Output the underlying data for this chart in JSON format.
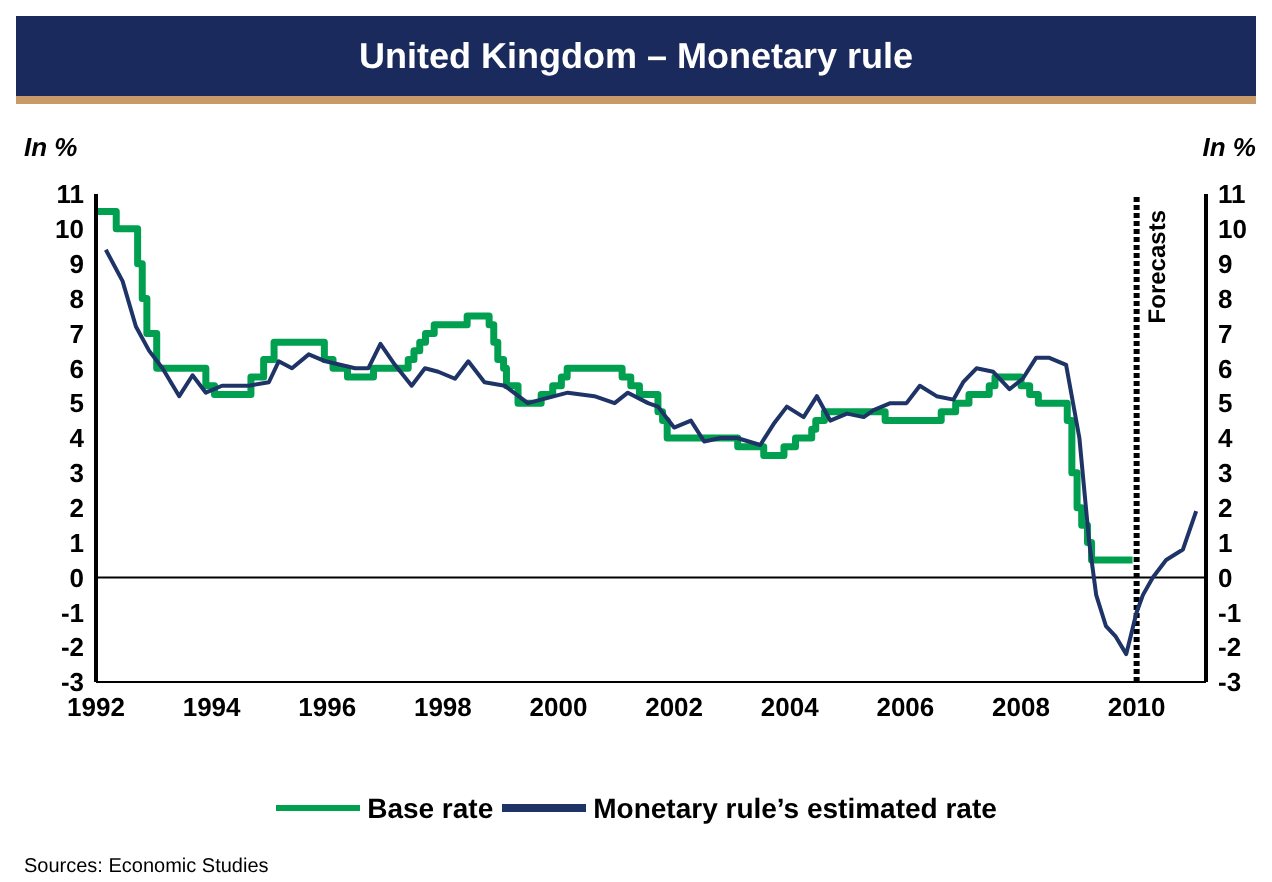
{
  "chart_data": {
    "type": "line",
    "title": "United Kingdom – Monetary rule",
    "ylabel": "In %",
    "y2label": "In %",
    "xlim": [
      1992,
      2011.2
    ],
    "xticks": [
      1992,
      1994,
      1996,
      1998,
      2000,
      2002,
      2004,
      2006,
      2008,
      2010
    ],
    "ylim": [
      -3,
      11
    ],
    "yticks": [
      -3,
      -2,
      -1,
      0,
      1,
      2,
      3,
      4,
      5,
      6,
      7,
      8,
      9,
      10,
      11
    ],
    "y2lim": [
      -3,
      11
    ],
    "y2ticks": [
      -3,
      -2,
      -1,
      0,
      1,
      2,
      3,
      4,
      5,
      6,
      7,
      8,
      9,
      10,
      11
    ],
    "legend": "bottom",
    "marker": "none",
    "ref_lines": [
      {
        "axis": "y",
        "value": 0,
        "color": "#000000",
        "line_style": "solid"
      },
      {
        "axis": "x",
        "value": 2010,
        "label": "Forecasts",
        "color": "#000000",
        "line_style": "dotted"
      }
    ],
    "annotations": [
      "Sources: Economic Studies"
    ],
    "series": [
      {
        "name": "Base rate",
        "type": "step",
        "color": "#00a050",
        "line_style": "solid",
        "x": [
          1992,
          1992.35,
          1992.72,
          1992.8,
          1992.88,
          1993.05,
          1993.9,
          1994.05,
          1994.68,
          1994.9,
          1995.08,
          1995.95,
          1996.1,
          1996.35,
          1996.8,
          1997.4,
          1997.5,
          1997.6,
          1997.7,
          1997.85,
          1998.42,
          1998.8,
          1998.88,
          1998.95,
          1999.05,
          1999.1,
          1999.3,
          1999.7,
          1999.9,
          2000.05,
          2000.15,
          2001.1,
          2001.25,
          2001.4,
          2001.72,
          2001.8,
          2001.88,
          2003.1,
          2003.55,
          2003.9,
          2004.1,
          2004.38,
          2004.45,
          2004.6,
          2005.65,
          2006.62,
          2006.87,
          2007.1,
          2007.45,
          2007.55,
          2008,
          2008.15,
          2008.3,
          2008.8,
          2008.88,
          2008.97,
          2009.05,
          2009.15,
          2009.22,
          2009.93
        ],
        "values": [
          10.5,
          10,
          9,
          8,
          7,
          6,
          5.5,
          5.25,
          5.75,
          6.25,
          6.75,
          6.25,
          6,
          5.75,
          6,
          6.25,
          6.5,
          6.75,
          7,
          7.25,
          7.5,
          7.25,
          6.75,
          6.25,
          6,
          5.5,
          5,
          5.25,
          5.5,
          5.75,
          6,
          5.75,
          5.5,
          5.25,
          4.75,
          4.5,
          4,
          3.75,
          3.5,
          3.75,
          4,
          4.25,
          4.5,
          4.75,
          4.5,
          4.75,
          5,
          5.25,
          5.5,
          5.75,
          5.5,
          5.25,
          5,
          4.5,
          3,
          2,
          1.5,
          1,
          0.5,
          0.5
        ]
      },
      {
        "name": "Monetary rule’s estimated rate",
        "color": "#1f3466",
        "line_style": "solid",
        "x": [
          1992.17,
          1992.46,
          1992.69,
          1992.92,
          1993.15,
          1993.44,
          1993.67,
          1993.9,
          1994.18,
          1994.64,
          1994.99,
          1995.16,
          1995.39,
          1995.68,
          1995.97,
          1996.48,
          1996.71,
          1996.92,
          1997.17,
          1997.46,
          1997.69,
          1997.92,
          1998.21,
          1998.44,
          1998.72,
          1999.07,
          1999.47,
          1999.7,
          2000.16,
          2000.62,
          2000.97,
          2001.2,
          2001.55,
          2001.72,
          2002,
          2002.29,
          2002.52,
          2002.8,
          2003.09,
          2003.49,
          2003.72,
          2003.95,
          2004.24,
          2004.47,
          2004.7,
          2004.99,
          2005.28,
          2005.45,
          2005.74,
          2006.02,
          2006.25,
          2006.54,
          2006.83,
          2007,
          2007.23,
          2007.52,
          2007.8,
          2008.03,
          2008.26,
          2008.49,
          2008.78,
          2009.01,
          2009.18,
          2009.3,
          2009.47,
          2009.64,
          2009.82,
          2010,
          2010.11,
          2010.28,
          2010.51,
          2010.8,
          2011.03
        ],
        "values": [
          9.4,
          8.5,
          7.2,
          6.5,
          6,
          5.2,
          5.8,
          5.3,
          5.5,
          5.5,
          5.6,
          6.2,
          6,
          6.4,
          6.2,
          6,
          6,
          6.7,
          6.1,
          5.5,
          6,
          5.9,
          5.7,
          6.2,
          5.6,
          5.5,
          5,
          5.1,
          5.3,
          5.2,
          5,
          5.3,
          5,
          4.9,
          4.3,
          4.5,
          3.9,
          4,
          4,
          3.8,
          4.4,
          4.9,
          4.6,
          5.2,
          4.5,
          4.7,
          4.6,
          4.8,
          5,
          5,
          5.5,
          5.2,
          5.1,
          5.6,
          6,
          5.9,
          5.4,
          5.7,
          6.3,
          6.3,
          6.1,
          4,
          1,
          -0.5,
          -1.4,
          -1.7,
          -2.2,
          -1,
          -0.5,
          0,
          0.5,
          0.8,
          1.9
        ]
      }
    ]
  }
}
